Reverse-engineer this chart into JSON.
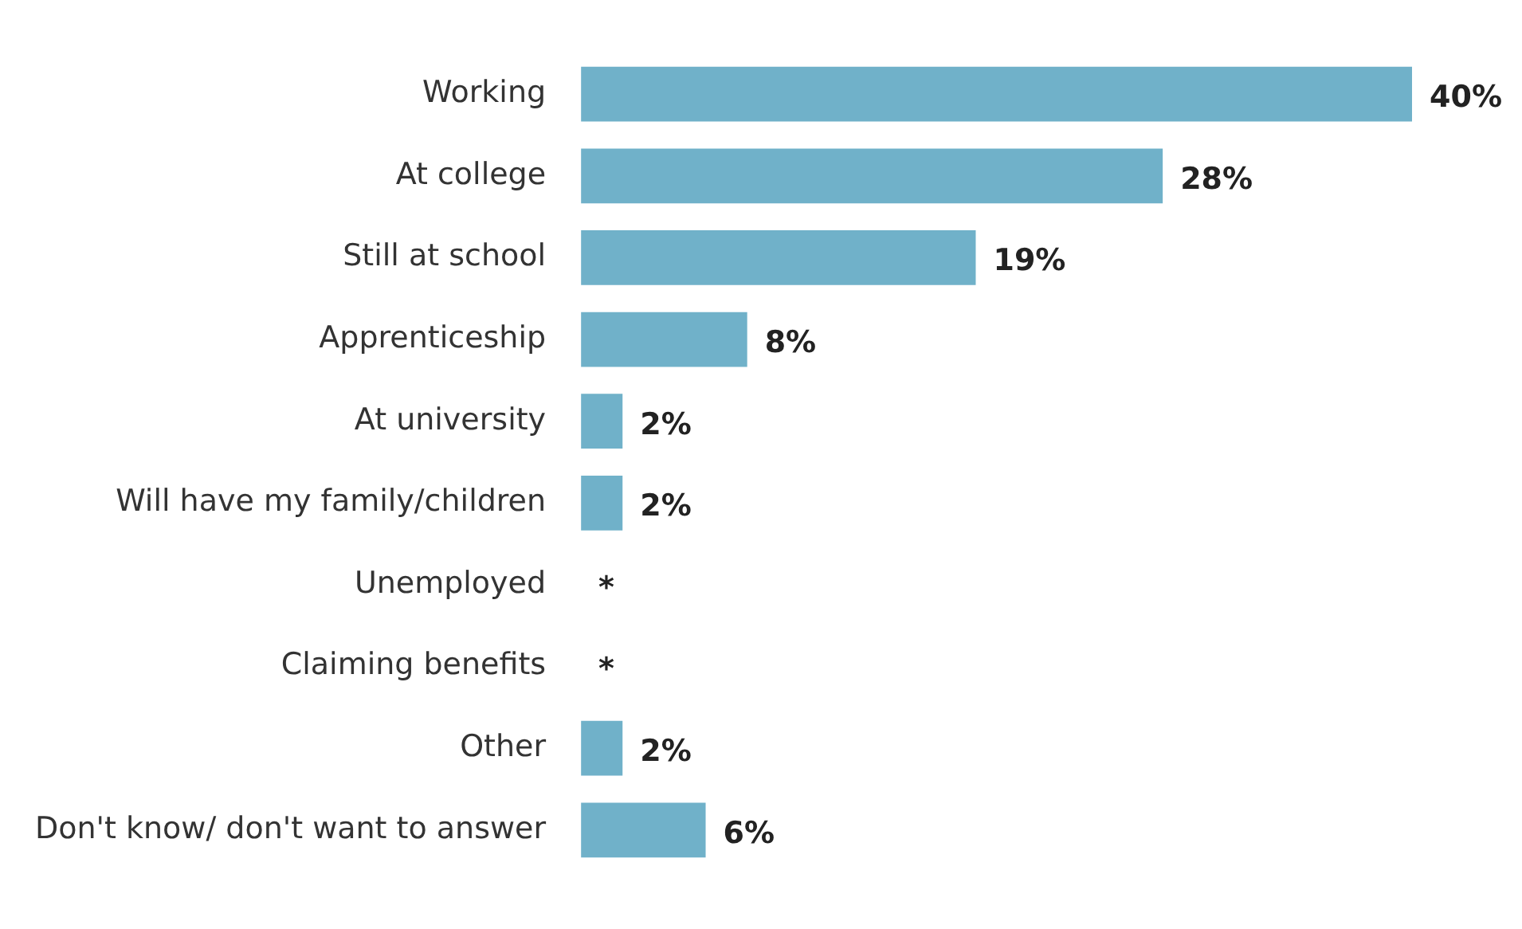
{
  "chart_data": {
    "type": "bar",
    "orientation": "horizontal",
    "categories": [
      "Working",
      "At college",
      "Still at school",
      "Apprenticeship",
      "At university",
      "Will have my family/children",
      "Unemployed",
      "Claiming benefits",
      "Other",
      "Don't know/ don't want to answer"
    ],
    "values": [
      40,
      28,
      19,
      8,
      2,
      2,
      null,
      null,
      2,
      6
    ],
    "value_labels": [
      "40%",
      "28%",
      "19%",
      "8%",
      "2%",
      "2%",
      "*",
      "*",
      "2%",
      "6%"
    ],
    "color": "#70b1c9",
    "legend": false
  }
}
